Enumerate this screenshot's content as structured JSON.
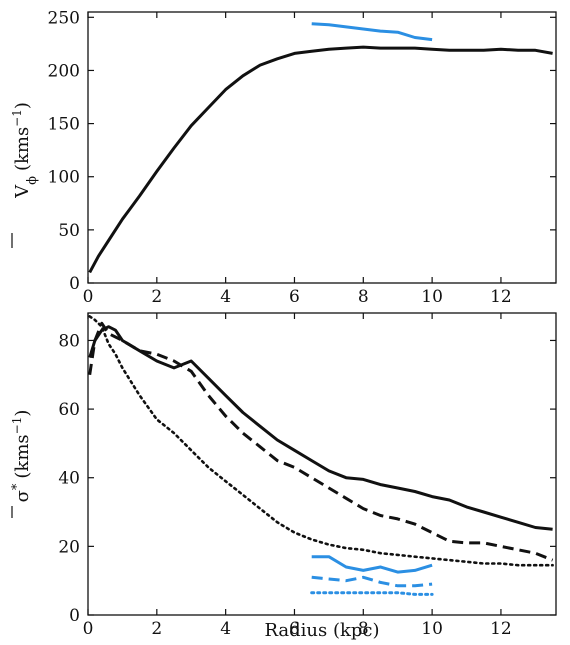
{
  "chart_data": [
    {
      "type": "line",
      "ylabel_main": "V",
      "ylabel_sub": "ϕ",
      "ylabel_unit": "(kms",
      "ylabel_exp": "−1",
      "ylabel_close": ")",
      "xlim": [
        0,
        13.6
      ],
      "ylim": [
        0,
        255
      ],
      "xticks": [
        0,
        2,
        4,
        6,
        8,
        10,
        12
      ],
      "yticks": [
        0,
        50,
        100,
        150,
        200,
        250
      ],
      "colors": {
        "model": "#111111",
        "observed": "#2b8fe3"
      },
      "series": [
        {
          "style": "solid",
          "color_key": "model",
          "x": [
            0.05,
            0.3,
            0.6,
            1.0,
            1.5,
            2.0,
            2.5,
            3.0,
            3.5,
            4.0,
            4.5,
            5.0,
            5.5,
            6.0,
            6.5,
            7.0,
            7.5,
            8.0,
            8.5,
            9.0,
            9.5,
            10.0,
            10.5,
            11.0,
            11.5,
            12.0,
            12.5,
            13.0,
            13.5
          ],
          "y": [
            10,
            25,
            40,
            60,
            82,
            105,
            127,
            148,
            165,
            182,
            195,
            205,
            211,
            216,
            218,
            220,
            221,
            222,
            221,
            221,
            221,
            220,
            219,
            219,
            219,
            220,
            219,
            219,
            216
          ]
        },
        {
          "style": "solid",
          "color_key": "observed",
          "x": [
            6.5,
            7.0,
            7.5,
            8.0,
            8.5,
            9.0,
            9.5,
            10.0
          ],
          "y": [
            244,
            243,
            241,
            239,
            237,
            236,
            231,
            229
          ]
        }
      ]
    },
    {
      "type": "line",
      "xlabel": "Radius (kpc)",
      "ylabel_main": "σ",
      "ylabel_sup": "*",
      "ylabel_unit": "(kms",
      "ylabel_exp": "−1",
      "ylabel_close": ")",
      "xlim": [
        0,
        13.6
      ],
      "ylim": [
        0,
        88
      ],
      "xticks": [
        0,
        2,
        4,
        6,
        8,
        10,
        12
      ],
      "yticks": [
        0,
        20,
        40,
        60,
        80
      ],
      "colors": {
        "model": "#111111",
        "observed": "#2b8fe3"
      },
      "series": [
        {
          "style": "solid",
          "color_key": "model",
          "x": [
            0.05,
            0.2,
            0.4,
            0.6,
            0.8,
            1.0,
            1.5,
            2.0,
            2.5,
            3.0,
            3.5,
            4.0,
            4.5,
            5.0,
            5.5,
            6.0,
            6.5,
            7.0,
            7.5,
            8.0,
            8.5,
            9.0,
            9.5,
            10.0,
            10.5,
            11.0,
            11.5,
            12.0,
            12.5,
            13.0,
            13.5
          ],
          "y": [
            75,
            80,
            83,
            84,
            83,
            80,
            77,
            74,
            72,
            74,
            69,
            64,
            59,
            55,
            51,
            48,
            45,
            42,
            40,
            39.5,
            38,
            37,
            36,
            34.5,
            33.5,
            31.5,
            30,
            28.5,
            27,
            25.5,
            25
          ]
        },
        {
          "style": "dashed",
          "color_key": "model",
          "x": [
            0.05,
            0.2,
            0.4,
            0.6,
            0.8,
            1.0,
            1.5,
            2.0,
            2.5,
            3.0,
            3.5,
            4.0,
            4.5,
            5.0,
            5.5,
            6.0,
            6.5,
            7.0,
            7.5,
            8.0,
            8.5,
            9.0,
            9.5,
            10.0,
            10.5,
            11.0,
            11.5,
            12.0,
            12.5,
            13.0,
            13.5
          ],
          "y": [
            70,
            80,
            85,
            82,
            81,
            80,
            77,
            76,
            74,
            71,
            64,
            58,
            53,
            49,
            45,
            43,
            40,
            37,
            34,
            31,
            29,
            28,
            26.5,
            24,
            21.5,
            21,
            21,
            20,
            19,
            18,
            16
          ]
        },
        {
          "style": "dotted",
          "color_key": "model",
          "x": [
            0.05,
            0.2,
            0.4,
            0.6,
            0.8,
            1.0,
            1.5,
            2.0,
            2.5,
            3.0,
            3.5,
            4.0,
            4.5,
            5.0,
            5.5,
            6.0,
            6.5,
            7.0,
            7.5,
            8.0,
            8.5,
            9.0,
            9.5,
            10.0,
            10.5,
            11.0,
            11.5,
            12.0,
            12.5,
            13.0,
            13.5
          ],
          "y": [
            87,
            86,
            84,
            79,
            76,
            72,
            64,
            57,
            53,
            48,
            43,
            39,
            35,
            31,
            27,
            24,
            22,
            20.5,
            19.5,
            19,
            18,
            17.5,
            17,
            16.5,
            16,
            15.5,
            15,
            15,
            14.5,
            14.5,
            14.5
          ]
        },
        {
          "style": "solid",
          "color_key": "observed",
          "x": [
            6.5,
            7.0,
            7.5,
            8.0,
            8.5,
            9.0,
            9.5,
            10.0
          ],
          "y": [
            17,
            17,
            14,
            13,
            14,
            12.5,
            13,
            14.5
          ]
        },
        {
          "style": "dashed",
          "color_key": "observed",
          "x": [
            6.5,
            7.0,
            7.5,
            8.0,
            8.5,
            9.0,
            9.5,
            10.0
          ],
          "y": [
            11,
            10.5,
            10,
            11,
            9.5,
            8.5,
            8.5,
            9
          ]
        },
        {
          "style": "dotted",
          "color_key": "observed",
          "x": [
            6.5,
            7.0,
            7.5,
            8.0,
            8.5,
            9.0,
            9.5,
            10.0
          ],
          "y": [
            6.5,
            6.5,
            6.5,
            6.5,
            6.5,
            6.5,
            6,
            6
          ]
        }
      ]
    }
  ]
}
